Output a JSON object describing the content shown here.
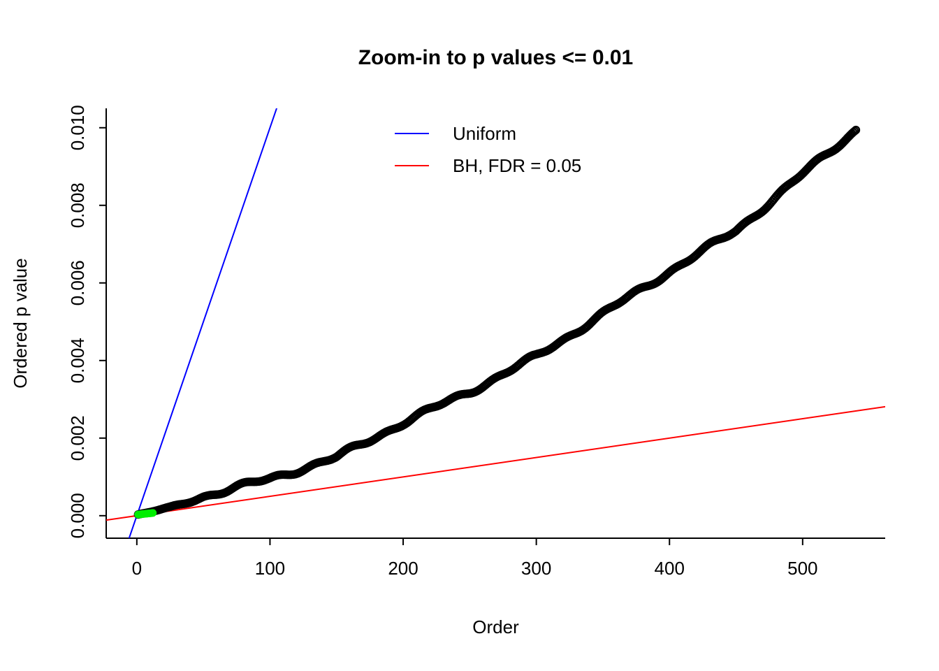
{
  "chart_data": {
    "type": "scatter",
    "title": "Zoom-in to p values <= 0.01",
    "xlabel": "Order",
    "ylabel": "Ordered p value",
    "xlim": [
      -23,
      562
    ],
    "ylim": [
      -0.00058,
      0.0105
    ],
    "x_ticks": [
      0,
      100,
      200,
      300,
      400,
      500
    ],
    "x_tick_labels": [
      "0",
      "100",
      "200",
      "300",
      "400",
      "500"
    ],
    "y_ticks": [
      0.0,
      0.002,
      0.004,
      0.006,
      0.008,
      0.01
    ],
    "y_tick_labels": [
      "0.000",
      "0.002",
      "0.004",
      "0.006",
      "0.008",
      "0.010"
    ],
    "grid": false,
    "axis_box": "L",
    "series": [
      {
        "name": "observed-p-values",
        "type": "points",
        "marker": "open-circle",
        "style": "open",
        "color": "#000000",
        "marker_radius": 5,
        "n_points": 540,
        "anchors_x": [
          1,
          25,
          50,
          100,
          150,
          200,
          250,
          300,
          350,
          400,
          450,
          500,
          540
        ],
        "anchors_y": [
          3e-05,
          0.0002,
          0.0005,
          0.00095,
          0.0015,
          0.0024,
          0.0032,
          0.0041,
          0.0052,
          0.0063,
          0.00735,
          0.0088,
          0.00995
        ]
      },
      {
        "name": "bh-significant-points",
        "type": "points",
        "marker": "solid-circle",
        "style": "solid",
        "color": "#00EE00",
        "marker_radius": 5.5,
        "n_points": 12,
        "anchors_x": [
          1,
          12
        ],
        "anchors_y": [
          3e-05,
          7e-05
        ]
      }
    ],
    "lines": [
      {
        "name": "uniform-line",
        "label": "Uniform",
        "color": "#0000FF",
        "slope": 0.0001,
        "intercept": 0,
        "width": 2
      },
      {
        "name": "bh-line",
        "label": "BH, FDR = 0.05",
        "color": "#FF0000",
        "slope": 5e-06,
        "intercept": 0,
        "width": 2
      }
    ],
    "legend": {
      "position": "top-center-left-inside",
      "entries": [
        {
          "label": "Uniform",
          "color": "#0000FF"
        },
        {
          "label": "BH, FDR = 0.05",
          "color": "#FF0000"
        }
      ]
    },
    "colors": {
      "foreground": "#000000",
      "background": "#FFFFFF",
      "uniform_line": "#0000FF",
      "bh_line": "#FF0000",
      "significant_points": "#00EE00"
    }
  }
}
